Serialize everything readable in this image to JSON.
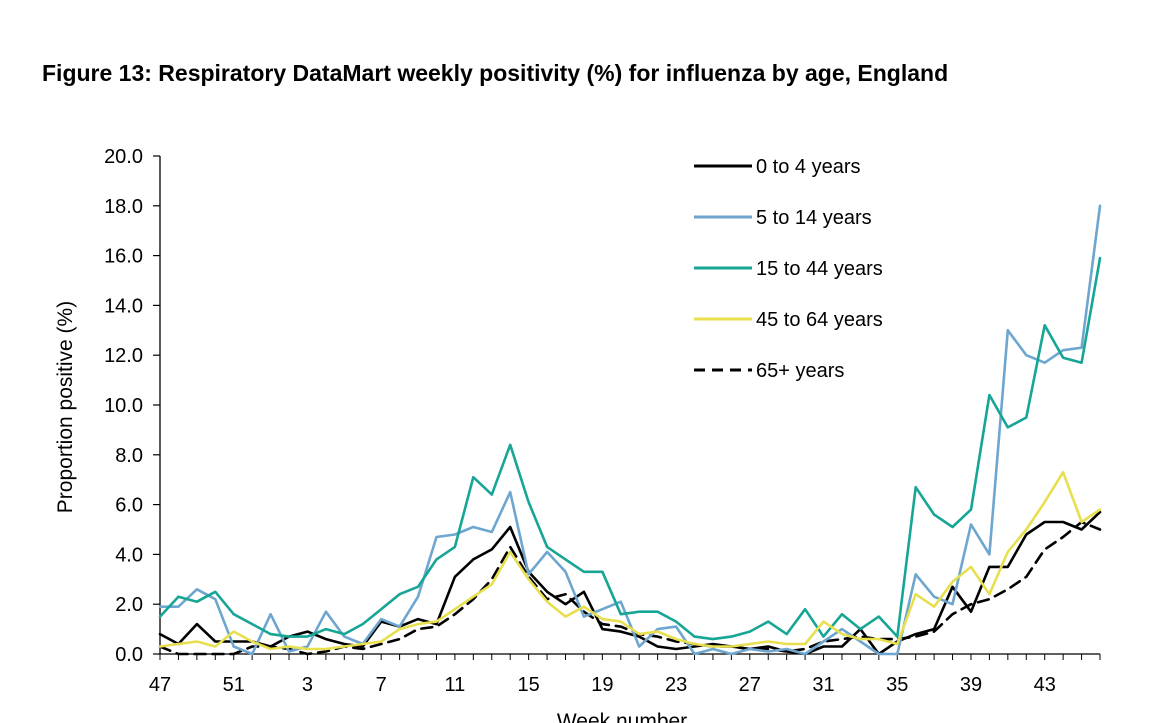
{
  "figure": {
    "title": "Figure 13: Respiratory DataMart weekly positivity (%) for influenza by age, England"
  },
  "chart_data": {
    "type": "line",
    "title": "Figure 13: Respiratory DataMart weekly positivity (%) for influenza by age, England",
    "xlabel": "Week number",
    "ylabel": "Proportion positive (%)",
    "ylim": [
      0,
      20
    ],
    "yticks": [
      "0.0",
      "2.0",
      "4.0",
      "6.0",
      "8.0",
      "10.0",
      "12.0",
      "14.0",
      "16.0",
      "18.0",
      "20.0"
    ],
    "x": [
      47,
      48,
      49,
      50,
      51,
      52,
      1,
      2,
      3,
      4,
      5,
      6,
      7,
      8,
      9,
      10,
      11,
      12,
      13,
      14,
      15,
      16,
      17,
      18,
      19,
      20,
      21,
      22,
      23,
      24,
      25,
      26,
      27,
      28,
      29,
      30,
      31,
      32,
      33,
      34,
      35,
      36,
      37,
      38,
      39,
      40,
      41,
      42,
      43,
      44,
      45,
      46
    ],
    "xtick_labels": [
      "47",
      "51",
      "3",
      "7",
      "11",
      "15",
      "19",
      "23",
      "27",
      "31",
      "35",
      "39",
      "43"
    ],
    "grid": false,
    "legend_position": "top-right",
    "series": [
      {
        "name": "0 to 4 years",
        "color": "#000000",
        "dash": "solid",
        "values": [
          0.8,
          0.4,
          1.2,
          0.5,
          0.5,
          0.5,
          0.3,
          0.7,
          0.9,
          0.6,
          0.4,
          0.3,
          1.3,
          1.1,
          1.4,
          1.2,
          3.1,
          3.8,
          4.2,
          5.1,
          3.3,
          2.5,
          2.0,
          2.5,
          1.0,
          0.9,
          0.7,
          0.3,
          0.2,
          0.3,
          0.4,
          0.3,
          0.2,
          0.3,
          0.1,
          0.0,
          0.3,
          0.3,
          1.0,
          0.0,
          0.5,
          0.8,
          1.0,
          2.7,
          1.7,
          3.5,
          3.5,
          4.8,
          5.3,
          5.3,
          5.0,
          5.7
        ]
      },
      {
        "name": "5 to 14 years",
        "color": "#6ea6cf",
        "dash": "solid",
        "values": [
          1.9,
          1.9,
          2.6,
          2.2,
          0.3,
          0.0,
          1.6,
          0.1,
          0.3,
          1.7,
          0.7,
          0.4,
          1.4,
          1.1,
          2.3,
          4.7,
          4.8,
          5.1,
          4.9,
          6.5,
          3.2,
          4.1,
          3.3,
          1.5,
          1.8,
          2.1,
          0.3,
          1.0,
          1.1,
          0.0,
          0.2,
          0.0,
          0.2,
          0.1,
          0.2,
          0.0,
          0.5,
          1.0,
          0.5,
          0.0,
          0.0,
          3.2,
          2.3,
          2.0,
          5.2,
          4.0,
          13.0,
          12.0,
          11.7,
          12.2,
          12.3,
          18.0
        ]
      },
      {
        "name": "15 to 44 years",
        "color": "#17a596",
        "dash": "solid",
        "values": [
          1.5,
          2.3,
          2.1,
          2.5,
          1.6,
          1.2,
          0.8,
          0.7,
          0.7,
          1.0,
          0.8,
          1.2,
          1.8,
          2.4,
          2.7,
          3.8,
          4.3,
          7.1,
          6.4,
          8.4,
          6.1,
          4.3,
          3.8,
          3.3,
          3.3,
          1.6,
          1.7,
          1.7,
          1.3,
          0.7,
          0.6,
          0.7,
          0.9,
          1.3,
          0.8,
          1.8,
          0.7,
          1.6,
          1.0,
          1.5,
          0.7,
          6.7,
          5.6,
          5.1,
          5.8,
          10.4,
          9.1,
          9.5,
          13.2,
          11.9,
          11.7,
          15.9
        ]
      },
      {
        "name": "45 to 64 years",
        "color": "#e8df4f",
        "dash": "solid",
        "values": [
          0.3,
          0.4,
          0.5,
          0.3,
          0.9,
          0.5,
          0.2,
          0.3,
          0.2,
          0.2,
          0.3,
          0.4,
          0.5,
          1.0,
          1.2,
          1.3,
          1.8,
          2.3,
          2.8,
          4.1,
          3.0,
          2.1,
          1.5,
          1.9,
          1.4,
          1.3,
          0.8,
          0.9,
          0.6,
          0.4,
          0.3,
          0.3,
          0.4,
          0.5,
          0.4,
          0.4,
          1.3,
          0.8,
          0.6,
          0.6,
          0.4,
          2.4,
          1.9,
          2.9,
          3.5,
          2.4,
          4.1,
          5.0,
          6.1,
          7.3,
          5.3,
          5.8
        ]
      },
      {
        "name": "65+ years",
        "color": "#000000",
        "dash": "dashed",
        "values": [
          0.3,
          0.0,
          0.0,
          0.0,
          0.0,
          0.3,
          0.3,
          0.2,
          0.0,
          0.1,
          0.3,
          0.2,
          0.4,
          0.6,
          1.0,
          1.1,
          1.6,
          2.2,
          3.0,
          4.3,
          3.1,
          2.2,
          2.4,
          1.7,
          1.2,
          1.1,
          0.8,
          0.7,
          0.5,
          0.4,
          0.3,
          0.3,
          0.2,
          0.2,
          0.1,
          0.2,
          0.5,
          0.6,
          0.7,
          0.6,
          0.6,
          0.7,
          0.9,
          1.6,
          2.0,
          2.2,
          2.6,
          3.1,
          4.2,
          4.7,
          5.3,
          5.0
        ]
      }
    ]
  }
}
